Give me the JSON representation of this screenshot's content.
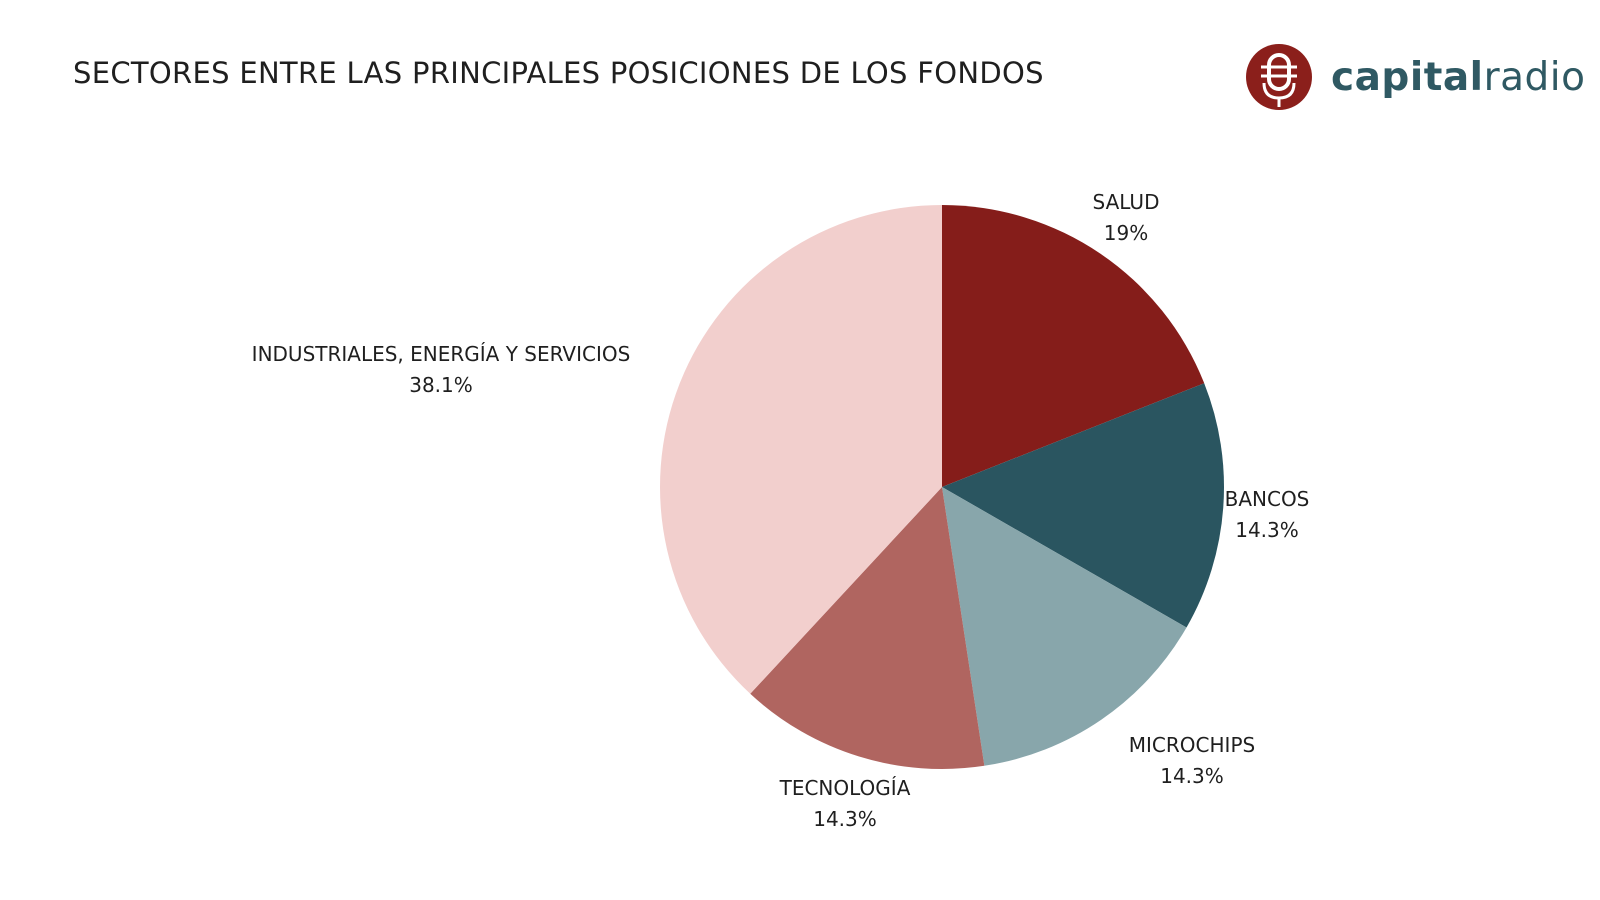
{
  "title": "SECTORES ENTRE LAS PRINCIPALES POSICIONES DE LOS FONDOS",
  "logo": {
    "brand_bold": "capital",
    "brand_light": "radio"
  },
  "colors": {
    "title": "#1f1f1f",
    "brand": "#2f5963",
    "logo_red": "#8b1f1b"
  },
  "chart_data": {
    "type": "pie",
    "title": "SECTORES ENTRE LAS PRINCIPALES POSICIONES DE LOS FONDOS",
    "start_angle_deg": 0,
    "direction": "clockwise",
    "slices": [
      {
        "label": "SALUD",
        "value": 19,
        "display": "19%",
        "color": "#851d1a"
      },
      {
        "label": "BANCOS",
        "value": 14.3,
        "display": "14.3%",
        "color": "#2a5560"
      },
      {
        "label": "MICROCHIPS",
        "value": 14.3,
        "display": "14.3%",
        "color": "#88a6ab"
      },
      {
        "label": "TECNOLOGÍA",
        "value": 14.3,
        "display": "14.3%",
        "color": "#b06560"
      },
      {
        "label": "INDUSTRIALES, ENERGÍA Y SERVICIOS",
        "value": 38.1,
        "display": "38.1%",
        "color": "#f2cfcd"
      }
    ]
  }
}
